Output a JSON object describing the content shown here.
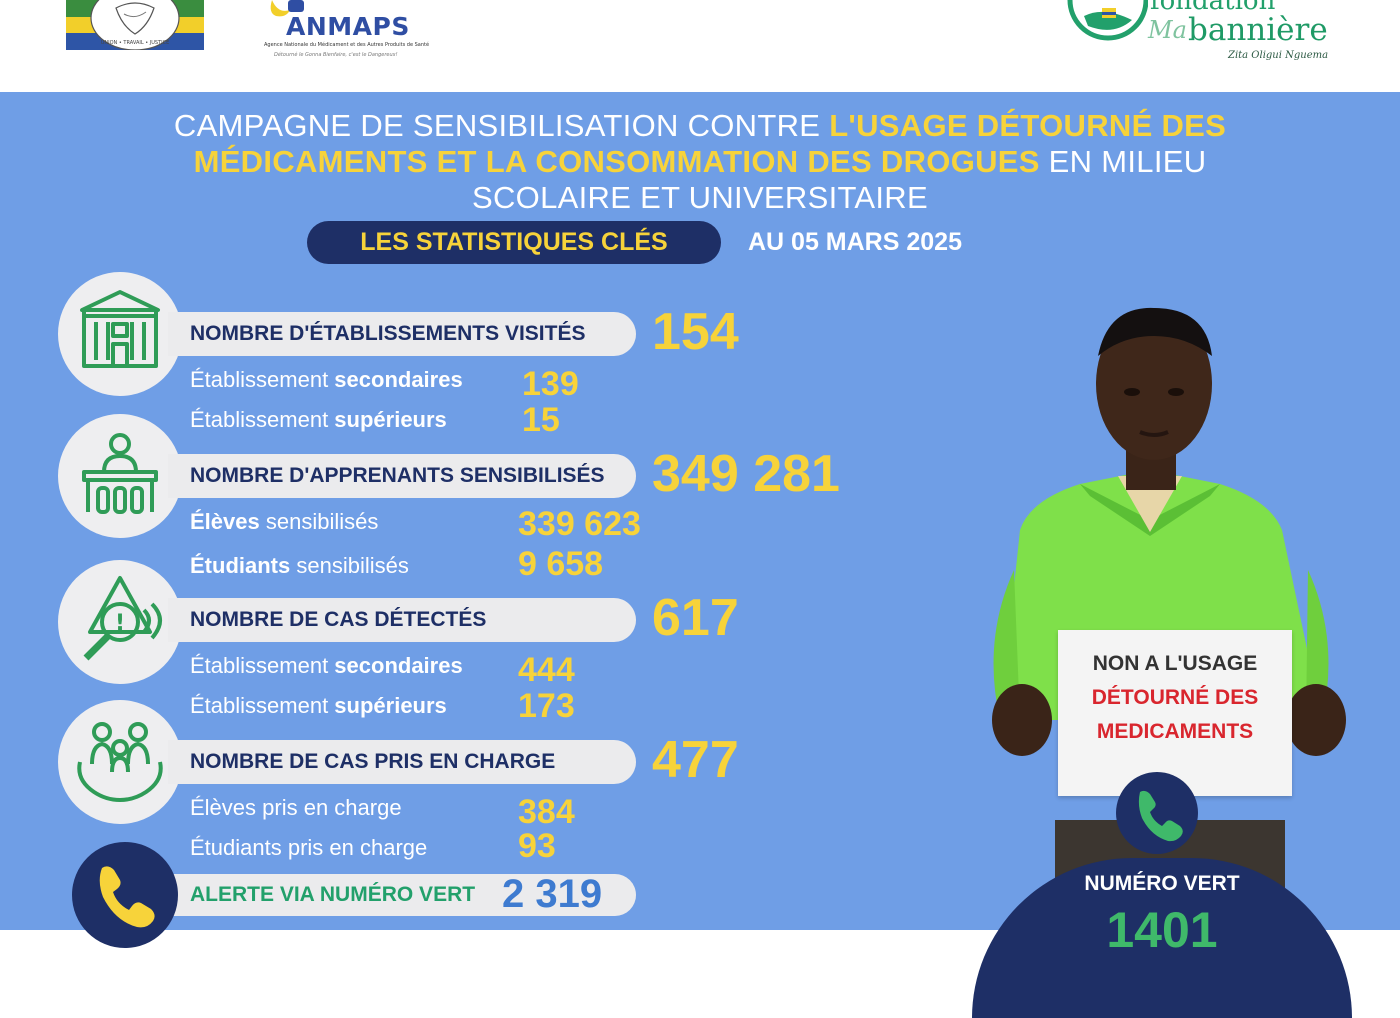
{
  "header": {
    "anmaps": {
      "name": "ANMAPS",
      "subtitle": "Agence Nationale du Médicament et des Autres Produits de Santé",
      "slogan": "Détourné le Gonna Bienfaire, c'est le Dangereux!"
    },
    "fondation": {
      "word": "fondation",
      "ma": "Ma",
      "banniere": "bannière",
      "signature": "Zita Oligui Nguema"
    }
  },
  "title": {
    "p1": "CAMPAGNE DE SENSIBILISATION CONTRE ",
    "p2": "L'USAGE DÉTOURNÉ DES MÉDICAMENTS ET LA CONSOMMATION DES DROGUES",
    "p3": " EN MILIEU SCOLAIRE ET UNIVERSITAIRE"
  },
  "stats_label": "LES STATISTIQUES CLÉS",
  "date": "AU 05 MARS 2025",
  "stats": [
    {
      "label": "NOMBRE D'ÉTABLISSEMENTS VISITÉS",
      "total": "154",
      "items": [
        {
          "pre": "Établissement ",
          "bold": "secondaires",
          "post": "",
          "value": "139"
        },
        {
          "pre": "Établissement ",
          "bold": "supérieurs",
          "post": "",
          "value": "15"
        }
      ]
    },
    {
      "label": "NOMBRE D'APPRENANTS SENSIBILISÉS",
      "total": "349 281",
      "items": [
        {
          "pre": "",
          "bold": "Élèves",
          "post": " sensibilisés",
          "value": "339 623"
        },
        {
          "pre": "",
          "bold": "Étudiants",
          "post": " sensibilisés",
          "value": "9 658"
        }
      ]
    },
    {
      "label": "NOMBRE DE CAS DÉTECTÉS",
      "total": "617",
      "items": [
        {
          "pre": "Établissement ",
          "bold": "secondaires",
          "post": "",
          "value": "444"
        },
        {
          "pre": "Établissement ",
          "bold": "supérieurs",
          "post": "",
          "value": "173"
        }
      ]
    },
    {
      "label": "NOMBRE DE CAS PRIS EN CHARGE",
      "total": "477",
      "items": [
        {
          "pre": "Élèves pris en charge",
          "bold": "",
          "post": "",
          "value": "384"
        },
        {
          "pre": "Étudiants pris en charge",
          "bold": "",
          "post": "",
          "value": "93"
        }
      ]
    }
  ],
  "alert": {
    "label": "ALERTE VIA NUMÉRO VERT",
    "value": "2 319"
  },
  "sign": {
    "line1": "NON A L'USAGE",
    "line2": "DÉTOURNÉ DES",
    "line3": "MEDICAMENTS"
  },
  "numero_vert": {
    "label": "NUMÉRO VERT",
    "number": "1401"
  },
  "colors": {
    "background": "#6f9ee6",
    "navy": "#1e2f66",
    "yellow": "#f7d33a",
    "green": "#22a06b"
  },
  "icons": [
    "building-icon",
    "student-desk-icon",
    "warning-magnifier-icon",
    "family-hands-icon",
    "phone-icon"
  ]
}
